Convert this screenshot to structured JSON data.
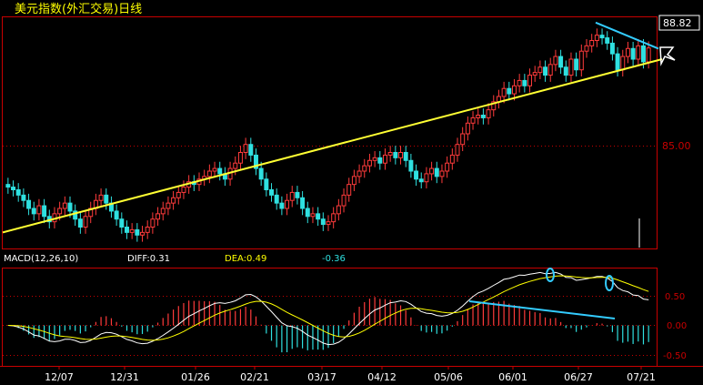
{
  "title": "美元指数(外汇交易)日线",
  "price_axis": {
    "last_price": "88.82",
    "mid_tick": "85.00"
  },
  "macd_panel": {
    "name": "MACD(12,26,10)",
    "diff": "DIFF:0.31",
    "dea": "DEA:0.49",
    "macd": "-0.36",
    "ticks": [
      "0.50",
      "0.00",
      "-0.50"
    ]
  },
  "x_labels": [
    "12/07",
    "12/31",
    "01/26",
    "02/21",
    "03/17",
    "04/12",
    "05/06",
    "06/01",
    "06/27",
    "07/21"
  ],
  "colors": {
    "up": "#ff3b3b",
    "down": "#2fe0e0",
    "trend": "#ffff33",
    "frame": "#c80000",
    "diff_line": "#ffffff",
    "dea_line": "#ffff00",
    "annotation": "#33ccff"
  },
  "chart_data": {
    "type": "candlestick",
    "title": "美元指数(外汇交易)日线",
    "price_ticks": [
      85.0
    ],
    "last_price": 88.82,
    "x_tick_labels": [
      "12/07",
      "12/31",
      "01/26",
      "02/21",
      "03/17",
      "04/12",
      "05/06",
      "06/01",
      "06/27",
      "07/21"
    ],
    "close_series": [
      83.6,
      83.5,
      83.3,
      83.1,
      82.8,
      82.6,
      82.9,
      82.5,
      82.3,
      82.6,
      82.8,
      83.0,
      82.7,
      82.4,
      82.1,
      82.5,
      82.8,
      83.1,
      83.3,
      83.0,
      82.7,
      82.4,
      82.1,
      81.9,
      82.0,
      81.8,
      81.9,
      82.1,
      82.4,
      82.6,
      82.8,
      83.0,
      83.2,
      83.4,
      83.6,
      83.8,
      83.7,
      83.9,
      84.0,
      84.2,
      84.3,
      84.1,
      83.9,
      84.3,
      84.5,
      84.9,
      85.2,
      84.8,
      84.3,
      83.9,
      83.5,
      83.3,
      83.0,
      82.8,
      83.1,
      83.4,
      83.2,
      82.8,
      82.5,
      82.6,
      82.4,
      82.2,
      82.3,
      82.6,
      82.9,
      83.3,
      83.7,
      84.0,
      84.2,
      84.4,
      84.6,
      84.7,
      84.5,
      84.8,
      84.9,
      84.7,
      84.9,
      84.6,
      84.2,
      83.9,
      83.8,
      84.1,
      84.3,
      84.0,
      84.2,
      84.5,
      84.8,
      85.2,
      85.6,
      86.0,
      86.2,
      86.3,
      86.2,
      86.5,
      86.8,
      87.0,
      87.3,
      87.1,
      87.4,
      87.6,
      87.4,
      87.8,
      87.9,
      88.1,
      87.8,
      88.2,
      88.5,
      88.1,
      87.8,
      88.4,
      88.0,
      88.7,
      88.9,
      89.1,
      89.3,
      89.2,
      89.0,
      88.6,
      88.0,
      88.5,
      88.8,
      88.4,
      88.9,
      88.3,
      88.82
    ],
    "trend_lines": {
      "support_start": 81.9,
      "support_end": 88.4,
      "resistance_start": 89.5,
      "resistance_end": 89.0
    },
    "macd": {
      "name": "MACD(12,26,10)",
      "diff": 0.31,
      "dea": 0.49,
      "macd": -0.36,
      "ticks": [
        0.5,
        0.0,
        -0.5
      ]
    }
  }
}
